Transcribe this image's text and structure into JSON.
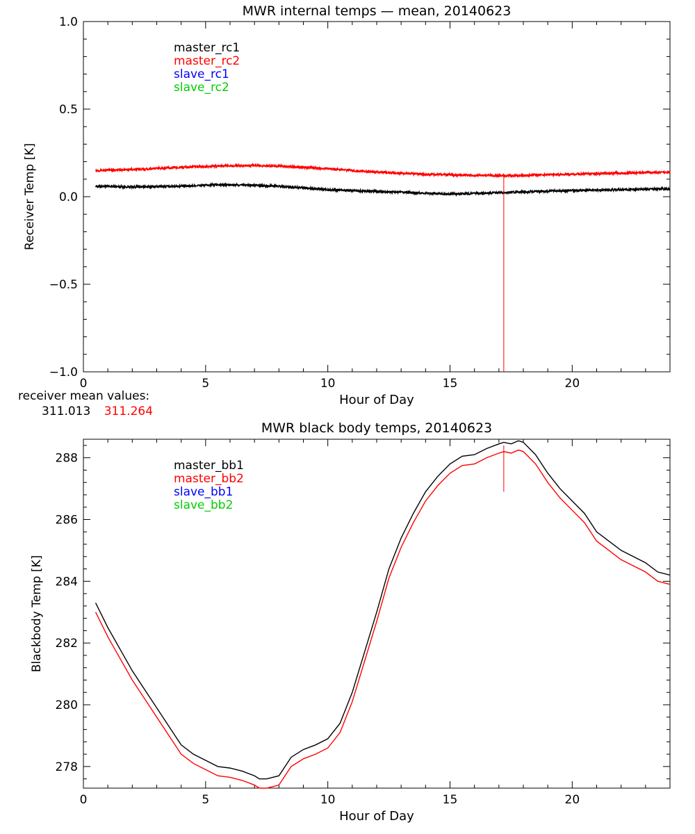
{
  "receiver_mean": {
    "label": "receiver mean values:",
    "values": [
      {
        "text": "311.013",
        "color": "#000000"
      },
      {
        "text": "311.264",
        "color": "#ff0000"
      }
    ]
  },
  "chart_data": [
    {
      "type": "line",
      "title": "MWR internal temps — mean, 20140623",
      "xlabel": "Hour of Day",
      "ylabel": "Receiver Temp [K]",
      "xlim": [
        0,
        24
      ],
      "ylim": [
        -1.0,
        1.0
      ],
      "xticks": [
        0,
        5,
        10,
        15,
        20
      ],
      "xtick_labels": [
        "0",
        "5",
        "10",
        "15",
        "20"
      ],
      "yticks": [
        -1.0,
        -0.5,
        0.0,
        0.5,
        1.0
      ],
      "ytick_labels": [
        "−1.0",
        "−0.5",
        "0.0",
        "0.5",
        "1.0"
      ],
      "legend": [
        {
          "name": "master_rc1",
          "color": "#000000"
        },
        {
          "name": "master_rc2",
          "color": "#ff0000"
        },
        {
          "name": "slave_rc1",
          "color": "#0000ff"
        },
        {
          "name": "slave_rc2",
          "color": "#00cc00"
        }
      ],
      "vline": {
        "x": 17.2,
        "y_from": -1.0,
        "y_to": 0.12,
        "color": "#ff0000"
      },
      "series": [
        {
          "name": "master_rc1",
          "color": "#000000",
          "noise": 0.006,
          "x": [
            0.5,
            2,
            4,
            5.5,
            7,
            8,
            10,
            12,
            14,
            15,
            16,
            17,
            18,
            20,
            22,
            24
          ],
          "y": [
            0.06,
            0.055,
            0.06,
            0.068,
            0.065,
            0.06,
            0.04,
            0.03,
            0.02,
            0.015,
            0.018,
            0.022,
            0.028,
            0.035,
            0.04,
            0.045
          ]
        },
        {
          "name": "master_rc2",
          "color": "#ff0000",
          "noise": 0.006,
          "x": [
            0.5,
            2,
            4,
            5.5,
            7,
            8,
            10,
            12,
            14,
            15,
            16,
            17,
            18,
            20,
            22,
            24
          ],
          "y": [
            0.15,
            0.155,
            0.168,
            0.175,
            0.178,
            0.175,
            0.16,
            0.14,
            0.128,
            0.125,
            0.122,
            0.12,
            0.122,
            0.128,
            0.135,
            0.14
          ]
        }
      ]
    },
    {
      "type": "line",
      "title": "MWR black body temps, 20140623",
      "xlabel": "Hour of Day",
      "ylabel": "Blackbody Temp [K]",
      "xlim": [
        0,
        24
      ],
      "ylim": [
        277.3,
        288.6
      ],
      "xticks": [
        0,
        5,
        10,
        15,
        20
      ],
      "xtick_labels": [
        "0",
        "5",
        "10",
        "15",
        "20"
      ],
      "yticks": [
        278,
        280,
        282,
        284,
        286,
        288
      ],
      "ytick_labels": [
        "278",
        "280",
        "282",
        "284",
        "286",
        "288"
      ],
      "legend": [
        {
          "name": "master_bb1",
          "color": "#000000"
        },
        {
          "name": "master_bb2",
          "color": "#ff0000"
        },
        {
          "name": "slave_bb1",
          "color": "#0000ff"
        },
        {
          "name": "slave_bb2",
          "color": "#00cc00"
        }
      ],
      "vline": {
        "x": 17.2,
        "y_from": 286.9,
        "y_to": 288.4,
        "color": "#ff0000"
      },
      "series": [
        {
          "name": "master_bb1",
          "color": "#000000",
          "noise": 0,
          "x": [
            0.5,
            1,
            1.5,
            2,
            3,
            4,
            4.5,
            5,
            5.5,
            6,
            6.5,
            7,
            7.2,
            7.5,
            8,
            8.5,
            9,
            9.5,
            10,
            10.5,
            11,
            11.5,
            12,
            12.5,
            13,
            13.5,
            14,
            14.5,
            15,
            15.5,
            16,
            16.5,
            17,
            17.2,
            17.5,
            17.8,
            18,
            18.5,
            19,
            19.5,
            20,
            20.5,
            21,
            21.5,
            22,
            23,
            23.5,
            24
          ],
          "y": [
            283.3,
            282.5,
            281.8,
            281.1,
            279.9,
            278.7,
            278.4,
            278.2,
            278.0,
            277.95,
            277.85,
            277.7,
            277.6,
            277.6,
            277.7,
            278.3,
            278.55,
            278.7,
            278.9,
            279.4,
            280.4,
            281.7,
            283.0,
            284.4,
            285.4,
            286.2,
            286.9,
            287.4,
            287.8,
            288.05,
            288.1,
            288.3,
            288.45,
            288.5,
            288.45,
            288.55,
            288.5,
            288.1,
            287.5,
            287.0,
            286.6,
            286.2,
            285.6,
            285.3,
            285.0,
            284.6,
            284.3,
            284.2
          ]
        },
        {
          "name": "master_bb2",
          "color": "#ff0000",
          "noise": 0,
          "x": [
            0.5,
            1,
            1.5,
            2,
            3,
            4,
            4.5,
            5,
            5.5,
            6,
            6.5,
            7,
            7.2,
            7.5,
            8,
            8.5,
            9,
            9.5,
            10,
            10.5,
            11,
            11.5,
            12,
            12.5,
            13,
            13.5,
            14,
            14.5,
            15,
            15.5,
            16,
            16.5,
            17,
            17.2,
            17.5,
            17.8,
            18,
            18.5,
            19,
            19.5,
            20,
            20.5,
            21,
            21.5,
            22,
            23,
            23.5,
            24
          ],
          "y": [
            283.0,
            282.2,
            281.5,
            280.8,
            279.6,
            278.4,
            278.1,
            277.9,
            277.7,
            277.65,
            277.55,
            277.4,
            277.3,
            277.3,
            277.4,
            278.0,
            278.25,
            278.4,
            278.6,
            279.1,
            280.1,
            281.4,
            282.7,
            284.1,
            285.1,
            285.9,
            286.6,
            287.1,
            287.5,
            287.75,
            287.8,
            288.0,
            288.15,
            288.2,
            288.15,
            288.25,
            288.2,
            287.8,
            287.2,
            286.7,
            286.3,
            285.9,
            285.3,
            285.0,
            284.7,
            284.3,
            284.0,
            283.9
          ]
        }
      ]
    }
  ]
}
